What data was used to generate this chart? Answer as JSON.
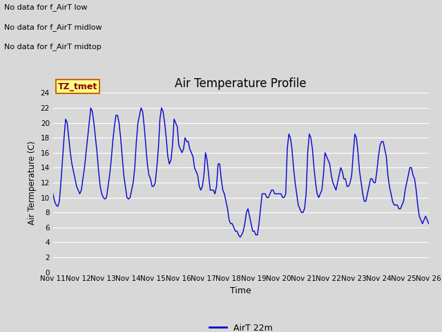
{
  "title": "Air Temperature Profile",
  "xlabel": "Time",
  "ylabel": "Air Termperature (C)",
  "ylim": [
    0,
    24
  ],
  "yticks": [
    0,
    2,
    4,
    6,
    8,
    10,
    12,
    14,
    16,
    18,
    20,
    22,
    24
  ],
  "xtick_labels": [
    "Nov 11",
    "Nov 12",
    "Nov 13",
    "Nov 14",
    "Nov 15",
    "Nov 16",
    "Nov 17",
    "Nov 18",
    "Nov 19",
    "Nov 20",
    "Nov 21",
    "Nov 22",
    "Nov 23",
    "Nov 24",
    "Nov 25",
    "Nov 26"
  ],
  "line_color": "#0000cc",
  "legend_label": "AirT 22m",
  "fig_bg_color": "#d8d8d8",
  "plot_bg_color": "#d8d8d8",
  "grid_color": "#ffffff",
  "annotations": [
    "No data for f_AirT low",
    "No data for f_AirT midlow",
    "No data for f_AirT midtop"
  ],
  "tz_label": "TZ_tmet",
  "time_series": [
    10.5,
    9.5,
    9.0,
    8.8,
    9.5,
    12.0,
    15.0,
    18.0,
    20.5,
    20.0,
    18.0,
    16.0,
    14.5,
    13.5,
    12.5,
    11.5,
    11.0,
    10.5,
    11.0,
    12.5,
    14.0,
    16.0,
    18.0,
    20.0,
    22.0,
    21.5,
    20.0,
    18.0,
    16.0,
    13.5,
    11.5,
    10.5,
    10.0,
    9.8,
    10.0,
    11.5,
    13.0,
    15.0,
    17.5,
    19.5,
    21.0,
    21.0,
    20.0,
    18.0,
    15.5,
    13.0,
    11.5,
    10.0,
    9.8,
    10.0,
    11.0,
    12.0,
    14.0,
    17.5,
    20.0,
    21.0,
    22.0,
    21.5,
    19.5,
    17.0,
    14.5,
    13.0,
    12.5,
    11.5,
    11.5,
    12.0,
    14.0,
    16.5,
    20.5,
    22.0,
    21.5,
    20.0,
    18.0,
    15.5,
    14.5,
    15.0,
    17.0,
    20.5,
    20.0,
    19.5,
    17.0,
    16.5,
    16.0,
    16.5,
    18.0,
    17.5,
    17.5,
    16.5,
    16.0,
    15.5,
    14.0,
    13.5,
    13.0,
    11.5,
    11.0,
    11.5,
    13.0,
    16.0,
    15.0,
    13.0,
    11.0,
    11.0,
    11.0,
    10.5,
    11.5,
    14.5,
    14.5,
    12.5,
    11.0,
    10.5,
    9.5,
    8.5,
    7.0,
    6.5,
    6.5,
    6.0,
    5.5,
    5.5,
    5.0,
    4.7,
    5.0,
    5.5,
    6.5,
    8.0,
    8.5,
    7.5,
    6.5,
    5.5,
    5.5,
    5.0,
    5.0,
    6.5,
    8.5,
    10.5,
    10.5,
    10.5,
    10.0,
    10.0,
    10.5,
    11.0,
    11.0,
    10.5,
    10.5,
    10.5,
    10.5,
    10.5,
    10.0,
    10.0,
    10.5,
    16.5,
    18.5,
    18.0,
    16.5,
    14.0,
    12.0,
    10.5,
    9.0,
    8.5,
    8.0,
    8.0,
    8.5,
    10.5,
    16.0,
    18.5,
    18.0,
    16.5,
    14.0,
    12.0,
    10.5,
    10.0,
    10.5,
    11.0,
    13.0,
    16.0,
    15.5,
    15.0,
    14.5,
    13.0,
    12.0,
    11.5,
    11.0,
    12.0,
    13.0,
    14.0,
    13.5,
    12.5,
    12.5,
    11.5,
    11.5,
    12.0,
    13.0,
    16.0,
    18.5,
    18.0,
    16.0,
    13.5,
    12.0,
    10.5,
    9.5,
    9.5,
    10.5,
    11.5,
    12.5,
    12.5,
    12.0,
    12.0,
    13.5,
    15.5,
    17.0,
    17.5,
    17.5,
    16.5,
    15.5,
    13.0,
    11.5,
    10.5,
    9.5,
    9.0,
    9.0,
    9.0,
    8.5,
    8.5,
    9.0,
    9.5,
    11.0,
    12.0,
    13.0,
    14.0,
    14.0,
    13.0,
    12.5,
    11.0,
    9.0,
    7.5,
    7.0,
    6.5,
    7.0,
    7.5,
    7.0,
    6.5
  ]
}
